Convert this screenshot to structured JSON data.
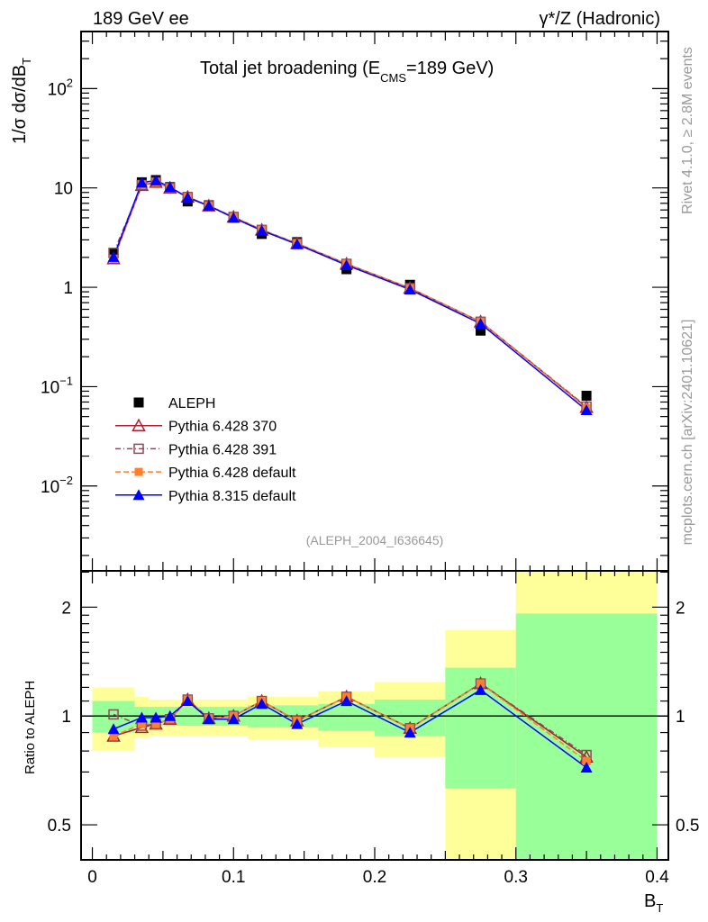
{
  "header": {
    "left": "189 GeV ee",
    "right": "γ*/Z (Hadronic)"
  },
  "side": {
    "rivet": "Rivet 4.1.0, ≥ 2.8M events",
    "mcplots": "mcplots.cern.ch [arXiv:2401.10621]"
  },
  "chart_data": {
    "type": "line",
    "title": "Total jet broadening (E",
    "title_sub": "CMS",
    "title_tail": "=189 GeV)",
    "analysis_id": "(ALEPH_2004_I636645)",
    "ylabel": "1/σ  dσ/dB",
    "ylabel_sub": "T",
    "xlabel": "B",
    "xlabel_sub": "T",
    "ratio_ylabel": "Ratio to ALEPH",
    "xlim": [
      -0.008,
      0.408
    ],
    "ylim": [
      0.0014,
      375
    ],
    "yscale": "log",
    "ratio_ylim": [
      0.4,
      2.52
    ],
    "x_ticks": [
      {
        "value": 0,
        "label": "0"
      },
      {
        "value": 0.1,
        "label": "0.1"
      },
      {
        "value": 0.2,
        "label": "0.2"
      },
      {
        "value": 0.3,
        "label": "0.3"
      },
      {
        "value": 0.4,
        "label": "0.4"
      }
    ],
    "y_ticks": [
      {
        "value": 0.01,
        "label": "10",
        "exp": "−2"
      },
      {
        "value": 0.1,
        "label": "10",
        "exp": "−1"
      },
      {
        "value": 1,
        "label": "1",
        "exp": ""
      },
      {
        "value": 10,
        "label": "10",
        "exp": ""
      },
      {
        "value": 100,
        "label": "10",
        "exp": "2"
      }
    ],
    "ratio_ticks": [
      {
        "value": 0.5,
        "label": "0.5"
      },
      {
        "value": 1,
        "label": "1"
      },
      {
        "value": 2,
        "label": "2"
      }
    ],
    "bin_edges": [
      0,
      0.03,
      0.04,
      0.05,
      0.06,
      0.075,
      0.09,
      0.11,
      0.13,
      0.16,
      0.2,
      0.25,
      0.3,
      0.4
    ],
    "x": [
      0.015,
      0.035,
      0.045,
      0.055,
      0.0675,
      0.0825,
      0.1,
      0.12,
      0.145,
      0.18,
      0.225,
      0.275,
      0.35
    ],
    "data": {
      "name": "ALEPH",
      "color": "#000000",
      "values": [
        2.2,
        11.4,
        12.0,
        10.2,
        7.3,
        6.7,
        5.1,
        3.44,
        2.85,
        1.52,
        1.06,
        0.366,
        0.081
      ]
    },
    "band_stat": [
      [
        0.9,
        1.1
      ],
      [
        0.93,
        1.06
      ],
      [
        0.94,
        1.06
      ],
      [
        0.94,
        1.06
      ],
      [
        0.94,
        1.06
      ],
      [
        0.94,
        1.06
      ],
      [
        0.94,
        1.06
      ],
      [
        0.93,
        1.07
      ],
      [
        0.93,
        1.07
      ],
      [
        0.91,
        1.08
      ],
      [
        0.88,
        1.11
      ],
      [
        0.63,
        1.36
      ],
      [
        0.3,
        1.92
      ]
    ],
    "band_total": [
      [
        0.8,
        1.2
      ],
      [
        0.87,
        1.13
      ],
      [
        0.88,
        1.11
      ],
      [
        0.88,
        1.11
      ],
      [
        0.88,
        1.11
      ],
      [
        0.88,
        1.11
      ],
      [
        0.88,
        1.11
      ],
      [
        0.86,
        1.13
      ],
      [
        0.86,
        1.13
      ],
      [
        0.82,
        1.17
      ],
      [
        0.77,
        1.24
      ],
      [
        0.3,
        1.73
      ],
      [
        0.2,
        3.0
      ]
    ],
    "series": [
      {
        "name": "Pythia 6.428 370",
        "color": "#b01c2e",
        "marker": "open-triangle",
        "dash": "",
        "values": [
          1.94,
          10.6,
          11.4,
          10.0,
          8.1,
          6.6,
          5.1,
          3.78,
          2.76,
          1.72,
          0.98,
          0.45,
          0.062
        ],
        "ratio": [
          0.88,
          0.93,
          0.95,
          0.98,
          1.11,
          0.985,
          1.0,
          1.1,
          0.97,
          1.13,
          0.925,
          1.23,
          0.77
        ]
      },
      {
        "name": "Pythia 6.428 391",
        "color": "#8a4b5c",
        "marker": "open-square",
        "dash": "6,3,1,3",
        "values": [
          2.22,
          10.7,
          11.4,
          10.0,
          8.1,
          6.6,
          5.1,
          3.78,
          2.76,
          1.72,
          0.98,
          0.45,
          0.063
        ],
        "ratio": [
          1.01,
          0.94,
          0.95,
          0.98,
          1.11,
          0.985,
          1.0,
          1.1,
          0.97,
          1.13,
          0.925,
          1.23,
          0.78
        ]
      },
      {
        "name": "Pythia 6.428 default",
        "color": "#ff7f2a",
        "marker": "filled-square",
        "dash": "6,3",
        "values": [
          1.94,
          10.8,
          11.4,
          10.0,
          8.1,
          6.6,
          5.1,
          3.78,
          2.76,
          1.72,
          0.98,
          0.45,
          0.061
        ],
        "ratio": [
          0.88,
          0.95,
          0.95,
          0.98,
          1.11,
          0.985,
          1.0,
          1.1,
          0.97,
          1.13,
          0.925,
          1.23,
          0.75
        ]
      },
      {
        "name": "Pythia 8.315 default",
        "color": "#0000ff",
        "marker": "filled-triangle",
        "dash": "",
        "values": [
          2.02,
          11.3,
          11.9,
          10.2,
          8.0,
          6.6,
          5.0,
          3.72,
          2.71,
          1.67,
          0.95,
          0.43,
          0.058
        ],
        "ratio": [
          0.92,
          0.99,
          0.99,
          1.0,
          1.1,
          0.98,
          0.98,
          1.08,
          0.95,
          1.1,
          0.9,
          1.18,
          0.72
        ]
      }
    ],
    "legend": "middle-left",
    "colors": {
      "band_stat": "#99ff99",
      "band_total": "#ffff99"
    }
  }
}
